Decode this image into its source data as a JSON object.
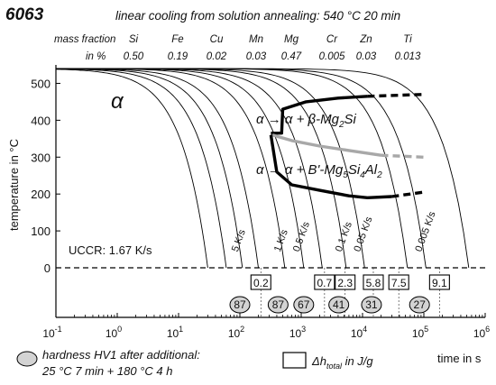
{
  "header": {
    "alloy": "6063",
    "condition": "linear cooling from solution annealing: 540 °C 20 min"
  },
  "composition": {
    "row_label": "mass fraction",
    "unit_label": "in %",
    "elements": [
      "Si",
      "Fe",
      "Cu",
      "Mn",
      "Mg",
      "Cr",
      "Zn",
      "Ti"
    ],
    "values": [
      "0.50",
      "0.19",
      "0.02",
      "0.03",
      "0.47",
      "0.005",
      "0.03",
      "0.013"
    ]
  },
  "labels": {
    "alpha": "α",
    "reaction_beta": "α → α + β-Mg2Si",
    "reaction_bprime": "α → α + B'-Mg5Si4Al2",
    "uccr": "UCCR: 1.67 K/s",
    "legend_hardness_line1": "hardness HV1 after additional:",
    "legend_hardness_line2": "25 °C 7 min + 180 °C 4 h",
    "legend_enthalpy": "Δh_total in J/g"
  },
  "colors": {
    "curve": "#000000",
    "beta_boundary": "#000000",
    "bprime_boundary": "#000000",
    "precip_boundary": "#a8a8a8",
    "ellipse_fill": "#d3d3d3"
  },
  "chart_data": {
    "type": "line",
    "x_scale": "log",
    "xlim": [
      0.1,
      1000000
    ],
    "ylim": [
      0,
      550
    ],
    "xlabel": "time in s",
    "ylabel": "temperature in °C",
    "x_ticks": [
      "10^-1",
      "10^0",
      "10^1",
      "10^2",
      "10^3",
      "10^4",
      "10^5",
      "10^6"
    ],
    "y_ticks": [
      0,
      100,
      200,
      300,
      400,
      500
    ],
    "grid": false,
    "cooling_rates": [
      {
        "label": "",
        "t_end": 30
      },
      {
        "label": "",
        "t_end": 60
      },
      {
        "label": "5 K/s",
        "t_end": 110
      },
      {
        "label": "",
        "t_end": 200
      },
      {
        "label": "1 K/s",
        "t_end": 540
      },
      {
        "label": "0.5 K/s",
        "t_end": 1100
      },
      {
        "label": "",
        "t_end": 2200
      },
      {
        "label": "0.1 K/s",
        "t_end": 5400
      },
      {
        "label": "0.05 K/s",
        "t_end": 10800
      },
      {
        "label": "",
        "t_end": 54000
      },
      {
        "label": "0.005 K/s",
        "t_end": 108000
      },
      {
        "label": "",
        "t_end": 540000
      }
    ],
    "boundaries": [
      {
        "name": "beta",
        "points": [
          [
            320,
            365
          ],
          [
            480,
            365
          ],
          [
            500,
            430
          ],
          [
            1200,
            450
          ],
          [
            4000,
            460
          ],
          [
            12000,
            465
          ]
        ],
        "extrapolation": [
          [
            12000,
            465
          ],
          [
            100000,
            470
          ]
        ]
      },
      {
        "name": "precip",
        "points": [
          [
            340,
            360
          ],
          [
            700,
            345
          ],
          [
            2000,
            330
          ],
          [
            6000,
            318
          ],
          [
            20000,
            305
          ]
        ],
        "extrapolation": [
          [
            20000,
            305
          ],
          [
            100000,
            300
          ]
        ]
      },
      {
        "name": "bprime",
        "points": [
          [
            320,
            360
          ],
          [
            400,
            260
          ],
          [
            700,
            225
          ],
          [
            2000,
            210
          ],
          [
            6000,
            195
          ],
          [
            12000,
            190
          ],
          [
            30000,
            193
          ]
        ],
        "extrapolation": [
          [
            30000,
            193
          ],
          [
            100000,
            205
          ]
        ]
      }
    ],
    "enthalpy_J_per_g": [
      {
        "t": 220,
        "value": "0.2"
      },
      {
        "t": 2400,
        "value": "0.7"
      },
      {
        "t": 5200,
        "value": "2.3"
      },
      {
        "t": 15000,
        "value": "5.8"
      },
      {
        "t": 39000,
        "value": "7.5"
      },
      {
        "t": 180000,
        "value": "9.1"
      }
    ],
    "hardness_HV1": [
      {
        "t": 100,
        "value": "87"
      },
      {
        "t": 420,
        "value": "87"
      },
      {
        "t": 1100,
        "value": "67"
      },
      {
        "t": 4100,
        "value": "41"
      },
      {
        "t": 14000,
        "value": "31"
      },
      {
        "t": 85000,
        "value": "27"
      }
    ]
  }
}
